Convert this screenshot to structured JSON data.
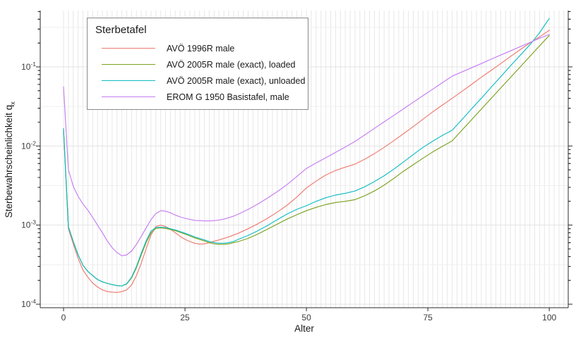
{
  "figure": {
    "x_axis_label": "Alter",
    "y_axis_label_main": "Sterbewahrscheinlichkeit q",
    "y_axis_label_sub": "x"
  },
  "chart_data": {
    "type": "line",
    "title": "",
    "xlabel": "Alter",
    "ylabel": "Sterbewahrscheinlichkeit q_x",
    "legend_title": "Sterbetafel",
    "legend_position": "top-left-inside",
    "grid": "on",
    "y_scale": "log10",
    "x_ticks": [
      0,
      25,
      50,
      75,
      100
    ],
    "y_tick_exponents": [
      -1,
      -2,
      -3,
      -4
    ],
    "xlim": [
      -4.8,
      103.9
    ],
    "ylim": [
      9.03e-05,
      0.515
    ],
    "x_minor_grid_step": 1,
    "colors": {
      "grid_vertical": "#e7e7e7",
      "grid_major_h": "#e3e3e3",
      "grid_minor_h": "#efefef",
      "axis_line": "#2b2b2b",
      "tick_label": "#3c3c3c"
    },
    "series": [
      {
        "name": "AVÖ 1996R male",
        "color": "#EE7A70",
        "points": [
          [
            0,
            0.016
          ],
          [
            1,
            0.0009
          ],
          [
            2,
            0.00058
          ],
          [
            3,
            0.00038
          ],
          [
            4,
            0.00027
          ],
          [
            5,
            0.00022
          ],
          [
            6,
            0.000185
          ],
          [
            7,
            0.000165
          ],
          [
            8,
            0.000152
          ],
          [
            9,
            0.000145
          ],
          [
            10,
            0.000142
          ],
          [
            11,
            0.000141
          ],
          [
            12,
            0.000144
          ],
          [
            13,
            0.000152
          ],
          [
            14,
            0.000175
          ],
          [
            15,
            0.00023
          ],
          [
            16,
            0.00033
          ],
          [
            17,
            0.0005
          ],
          [
            18,
            0.00075
          ],
          [
            19,
            0.00096
          ],
          [
            20,
            0.001
          ],
          [
            21,
            0.00096
          ],
          [
            22,
            0.00089
          ],
          [
            23,
            0.0008
          ],
          [
            24,
            0.00072
          ],
          [
            25,
            0.00066
          ],
          [
            26,
            0.00062
          ],
          [
            27,
            0.00059
          ],
          [
            28,
            0.000575
          ],
          [
            29,
            0.00058
          ],
          [
            30,
            0.0006
          ],
          [
            32,
            0.00065
          ],
          [
            34,
            0.00071
          ],
          [
            36,
            0.00079
          ],
          [
            38,
            0.0009
          ],
          [
            40,
            0.00104
          ],
          [
            42,
            0.00122
          ],
          [
            44,
            0.00146
          ],
          [
            46,
            0.00178
          ],
          [
            48,
            0.00225
          ],
          [
            50,
            0.00295
          ],
          [
            52,
            0.0036
          ],
          [
            54,
            0.0043
          ],
          [
            56,
            0.0049
          ],
          [
            58,
            0.0054
          ],
          [
            60,
            0.0059
          ],
          [
            62,
            0.0068
          ],
          [
            64,
            0.008
          ],
          [
            66,
            0.0096
          ],
          [
            68,
            0.0117
          ],
          [
            70,
            0.0143
          ],
          [
            72,
            0.0176
          ],
          [
            74,
            0.0218
          ],
          [
            76,
            0.027
          ],
          [
            78,
            0.033
          ],
          [
            80,
            0.04
          ],
          [
            82,
            0.049
          ],
          [
            84,
            0.06
          ],
          [
            86,
            0.074
          ],
          [
            88,
            0.09
          ],
          [
            90,
            0.11
          ],
          [
            92,
            0.135
          ],
          [
            94,
            0.165
          ],
          [
            96,
            0.2
          ],
          [
            98,
            0.24
          ],
          [
            100,
            0.29
          ]
        ]
      },
      {
        "name": "AVÖ 2005R male (exact), loaded",
        "color": "#7CA11E",
        "points": [
          [
            0,
            0.0166
          ],
          [
            1,
            0.00095
          ],
          [
            2,
            0.00062
          ],
          [
            3,
            0.00042
          ],
          [
            4,
            0.00031
          ],
          [
            5,
            0.00026
          ],
          [
            6,
            0.00023
          ],
          [
            7,
            0.000205
          ],
          [
            8,
            0.000192
          ],
          [
            9,
            0.000183
          ],
          [
            10,
            0.000177
          ],
          [
            11,
            0.000172
          ],
          [
            12,
            0.00017
          ],
          [
            13,
            0.00018
          ],
          [
            14,
            0.000215
          ],
          [
            15,
            0.00029
          ],
          [
            16,
            0.00042
          ],
          [
            17,
            0.0006
          ],
          [
            18,
            0.0008
          ],
          [
            19,
            0.00091
          ],
          [
            20,
            0.00092
          ],
          [
            21,
            0.00091
          ],
          [
            22,
            0.00088
          ],
          [
            23,
            0.00085
          ],
          [
            24,
            0.00081
          ],
          [
            25,
            0.00077
          ],
          [
            26,
            0.00073
          ],
          [
            27,
            0.00069
          ],
          [
            28,
            0.00066
          ],
          [
            29,
            0.00063
          ],
          [
            30,
            0.0006
          ],
          [
            31,
            0.00058
          ],
          [
            32,
            0.00057
          ],
          [
            33,
            0.00057
          ],
          [
            34,
            0.00058
          ],
          [
            35,
            0.0006
          ],
          [
            36,
            0.00062
          ],
          [
            38,
            0.00068
          ],
          [
            40,
            0.00077
          ],
          [
            42,
            0.00089
          ],
          [
            44,
            0.00103
          ],
          [
            46,
            0.00119
          ],
          [
            48,
            0.00135
          ],
          [
            50,
            0.00152
          ],
          [
            52,
            0.00168
          ],
          [
            54,
            0.00182
          ],
          [
            56,
            0.00193
          ],
          [
            58,
            0.002
          ],
          [
            60,
            0.0021
          ],
          [
            62,
            0.00235
          ],
          [
            64,
            0.0027
          ],
          [
            66,
            0.0032
          ],
          [
            68,
            0.0039
          ],
          [
            70,
            0.0048
          ],
          [
            72,
            0.0058
          ],
          [
            74,
            0.007
          ],
          [
            76,
            0.0084
          ],
          [
            78,
            0.0099
          ],
          [
            80,
            0.0116
          ],
          [
            82,
            0.0158
          ],
          [
            84,
            0.0215
          ],
          [
            86,
            0.0292
          ],
          [
            88,
            0.0397
          ],
          [
            90,
            0.054
          ],
          [
            92,
            0.0734
          ],
          [
            94,
            0.0998
          ],
          [
            96,
            0.1357
          ],
          [
            98,
            0.1845
          ],
          [
            100,
            0.25
          ]
        ]
      },
      {
        "name": "AVÖ 2005R male (exact), unloaded",
        "color": "#10BCC2",
        "points": [
          [
            0,
            0.0166
          ],
          [
            1,
            0.00095
          ],
          [
            2,
            0.00062
          ],
          [
            3,
            0.00042
          ],
          [
            4,
            0.00031
          ],
          [
            5,
            0.00026
          ],
          [
            6,
            0.00023
          ],
          [
            7,
            0.000205
          ],
          [
            8,
            0.000192
          ],
          [
            9,
            0.000183
          ],
          [
            10,
            0.000177
          ],
          [
            11,
            0.000172
          ],
          [
            12,
            0.00017
          ],
          [
            13,
            0.000182
          ],
          [
            14,
            0.00022
          ],
          [
            15,
            0.0003
          ],
          [
            16,
            0.00044
          ],
          [
            17,
            0.00063
          ],
          [
            18,
            0.00084
          ],
          [
            19,
            0.00093
          ],
          [
            20,
            0.00094
          ],
          [
            21,
            0.00093
          ],
          [
            22,
            0.0009
          ],
          [
            23,
            0.00087
          ],
          [
            24,
            0.00083
          ],
          [
            25,
            0.00079
          ],
          [
            26,
            0.00075
          ],
          [
            27,
            0.00071
          ],
          [
            28,
            0.00068
          ],
          [
            29,
            0.00065
          ],
          [
            30,
            0.00062
          ],
          [
            31,
            0.0006
          ],
          [
            32,
            0.00059
          ],
          [
            33,
            0.00059
          ],
          [
            34,
            0.0006
          ],
          [
            35,
            0.00062
          ],
          [
            36,
            0.00066
          ],
          [
            38,
            0.00074
          ],
          [
            40,
            0.00085
          ],
          [
            42,
            0.00099
          ],
          [
            44,
            0.00117
          ],
          [
            46,
            0.00138
          ],
          [
            48,
            0.00158
          ],
          [
            50,
            0.00176
          ],
          [
            52,
            0.002
          ],
          [
            54,
            0.00222
          ],
          [
            56,
            0.0024
          ],
          [
            58,
            0.00252
          ],
          [
            60,
            0.0027
          ],
          [
            62,
            0.00305
          ],
          [
            64,
            0.00355
          ],
          [
            66,
            0.0042
          ],
          [
            68,
            0.0051
          ],
          [
            70,
            0.0063
          ],
          [
            72,
            0.0078
          ],
          [
            74,
            0.0096
          ],
          [
            76,
            0.0115
          ],
          [
            78,
            0.0136
          ],
          [
            80,
            0.0158
          ],
          [
            82,
            0.0215
          ],
          [
            84,
            0.0295
          ],
          [
            86,
            0.04
          ],
          [
            88,
            0.055
          ],
          [
            90,
            0.075
          ],
          [
            92,
            0.103
          ],
          [
            94,
            0.14
          ],
          [
            96,
            0.19
          ],
          [
            98,
            0.27
          ],
          [
            100,
            0.41
          ]
        ]
      },
      {
        "name": "EROM G 1950 Basistafel, male",
        "color": "#C57DF2",
        "points": [
          [
            0,
            0.056
          ],
          [
            1,
            0.005
          ],
          [
            2,
            0.0031
          ],
          [
            3,
            0.0023
          ],
          [
            4,
            0.00185
          ],
          [
            5,
            0.00155
          ],
          [
            6,
            0.00125
          ],
          [
            7,
            0.001
          ],
          [
            8,
            0.0008
          ],
          [
            9,
            0.00063
          ],
          [
            10,
            0.00052
          ],
          [
            11,
            0.00045
          ],
          [
            12,
            0.00041
          ],
          [
            13,
            0.00042
          ],
          [
            14,
            0.00047
          ],
          [
            15,
            0.00057
          ],
          [
            16,
            0.00072
          ],
          [
            17,
            0.00092
          ],
          [
            18,
            0.00117
          ],
          [
            19,
            0.0014
          ],
          [
            20,
            0.00152
          ],
          [
            21,
            0.0015
          ],
          [
            22,
            0.00143
          ],
          [
            23,
            0.00134
          ],
          [
            24,
            0.00127
          ],
          [
            25,
            0.00122
          ],
          [
            26,
            0.00118
          ],
          [
            27,
            0.00115
          ],
          [
            28,
            0.00114
          ],
          [
            29,
            0.00113
          ],
          [
            30,
            0.00113
          ],
          [
            31,
            0.00114
          ],
          [
            32,
            0.00116
          ],
          [
            33,
            0.00119
          ],
          [
            34,
            0.00124
          ],
          [
            35,
            0.0013
          ],
          [
            36,
            0.00138
          ],
          [
            38,
            0.00158
          ],
          [
            40,
            0.00185
          ],
          [
            42,
            0.0022
          ],
          [
            44,
            0.00265
          ],
          [
            46,
            0.00325
          ],
          [
            48,
            0.0041
          ],
          [
            50,
            0.0052
          ],
          [
            52,
            0.0061
          ],
          [
            54,
            0.0071
          ],
          [
            56,
            0.0083
          ],
          [
            58,
            0.0097
          ],
          [
            60,
            0.0114
          ],
          [
            62,
            0.0138
          ],
          [
            64,
            0.0167
          ],
          [
            66,
            0.0202
          ],
          [
            68,
            0.0244
          ],
          [
            70,
            0.0295
          ],
          [
            72,
            0.0357
          ],
          [
            74,
            0.0432
          ],
          [
            76,
            0.0522
          ],
          [
            78,
            0.0631
          ],
          [
            80,
            0.0763
          ],
          [
            82,
            0.0862
          ],
          [
            84,
            0.0975
          ],
          [
            86,
            0.11
          ],
          [
            88,
            0.125
          ],
          [
            90,
            0.141
          ],
          [
            92,
            0.159
          ],
          [
            94,
            0.18
          ],
          [
            96,
            0.203
          ],
          [
            98,
            0.23
          ],
          [
            100,
            0.257
          ]
        ]
      }
    ]
  }
}
